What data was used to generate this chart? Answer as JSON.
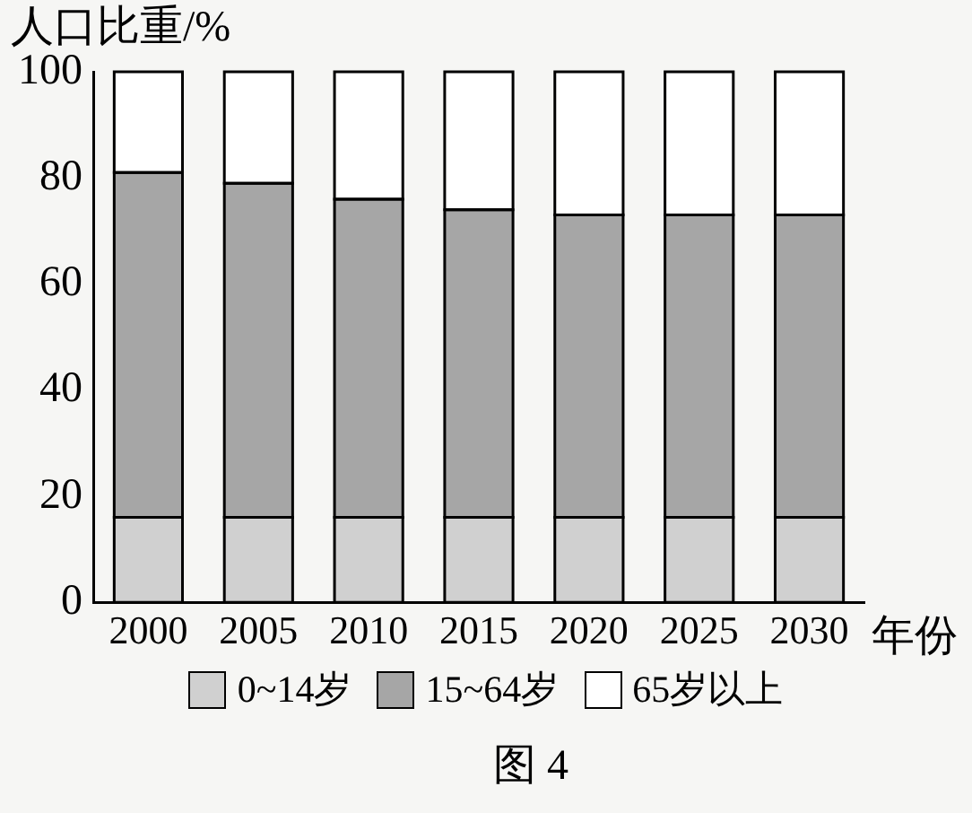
{
  "chart_data": {
    "type": "bar",
    "stacked": true,
    "ylabel": "人口比重/%",
    "xlabel": "年份",
    "annotations": [
      "图 4"
    ],
    "categories": [
      "2000",
      "2005",
      "2010",
      "2015",
      "2020",
      "2025",
      "2030"
    ],
    "series": [
      {
        "name": "0~14岁",
        "color": "#d0d0d0",
        "values": [
          16,
          16,
          16,
          16,
          16,
          16,
          16
        ]
      },
      {
        "name": "15~64岁",
        "color": "#a6a6a6",
        "values": [
          65,
          63,
          60,
          58,
          57,
          57,
          57
        ]
      },
      {
        "name": "65岁以上",
        "color": "#ffffff",
        "values": [
          19,
          21,
          24,
          26,
          27,
          27,
          27
        ]
      }
    ],
    "ylim": [
      0,
      100
    ],
    "yticks": [
      0,
      20,
      40,
      60,
      80,
      100
    ],
    "grid": false,
    "legend": "bottom"
  }
}
